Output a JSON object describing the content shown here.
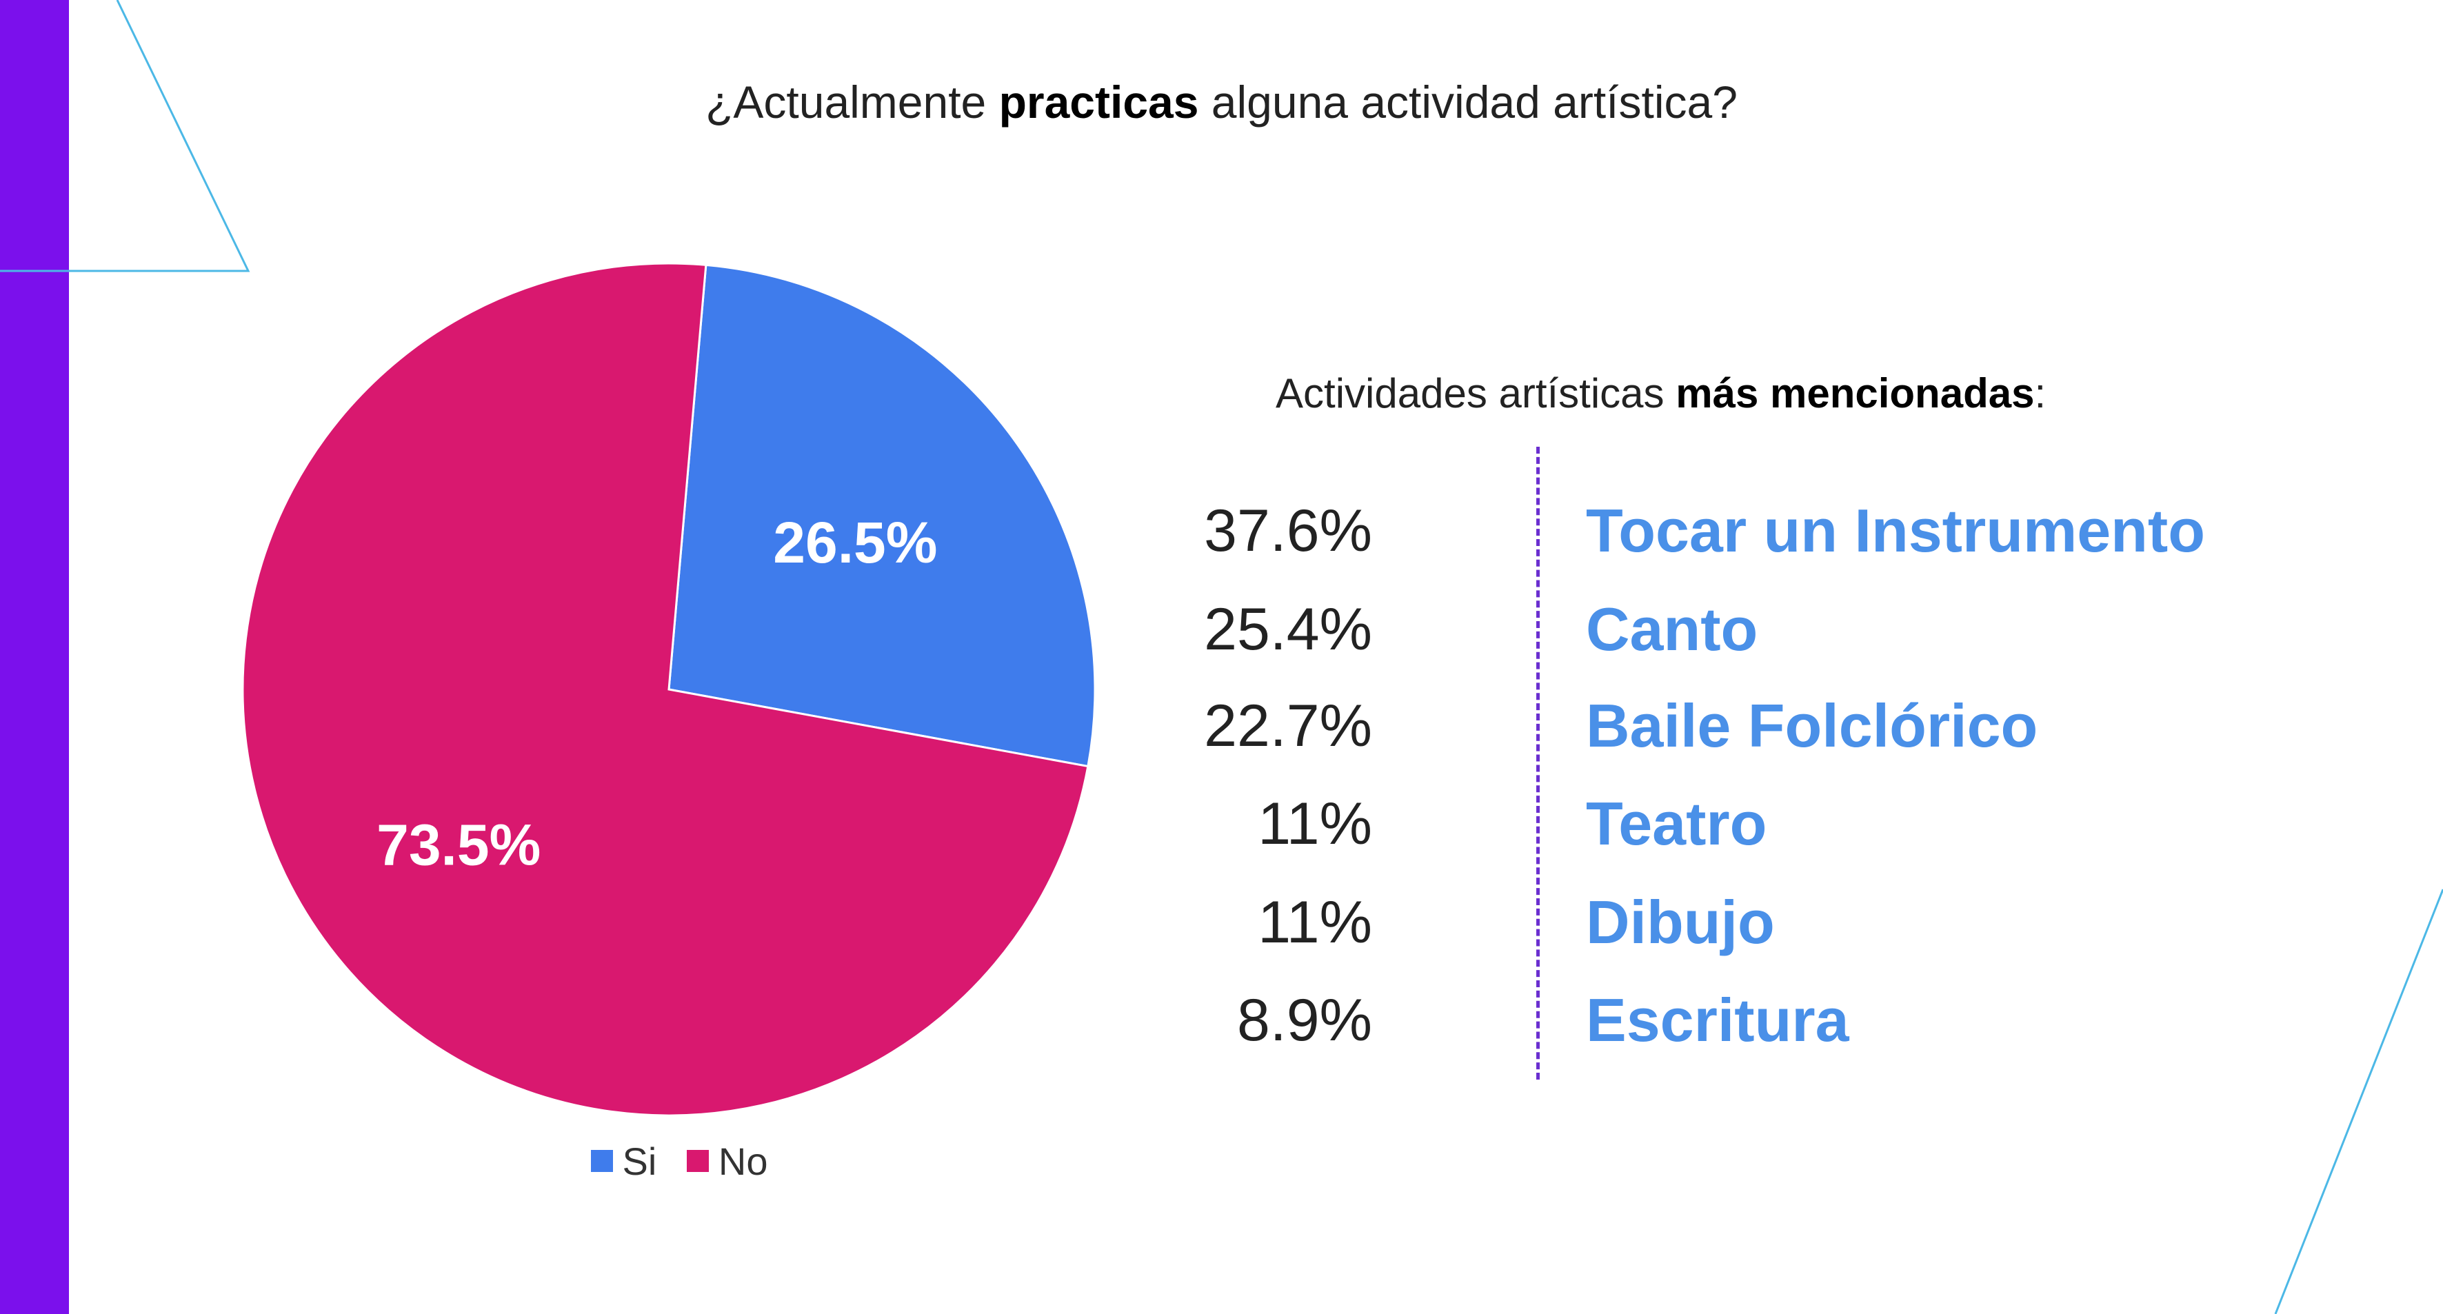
{
  "title": {
    "prefix": "¿Actualmente ",
    "bold": "practicas",
    "suffix": " alguna actividad artística?"
  },
  "colors": {
    "si": "#3f7cec",
    "no": "#d9186f",
    "left_bar": "#7b10ec",
    "deco_lines": "#4cb8e6",
    "activity_text": "#4a90e8",
    "divider": "#6a2fd0"
  },
  "chart_data": [
    {
      "type": "pie",
      "title": "¿Actualmente practicas alguna actividad artística?",
      "categories": [
        "Si",
        "No"
      ],
      "values": [
        26.5,
        73.5
      ],
      "labels": [
        "26.5%",
        "73.5%"
      ],
      "legend": [
        "Si",
        "No"
      ],
      "legend_position": "bottom"
    },
    {
      "type": "table",
      "title": "Actividades artísticas más mencionadas:",
      "categories": [
        "Tocar un Instrumento",
        "Canto",
        "Baile Folclórico",
        "Teatro",
        "Dibujo",
        "Escritura"
      ],
      "values": [
        37.6,
        25.4,
        22.7,
        11,
        11,
        8.9
      ]
    }
  ],
  "legend": {
    "si_label": "Si",
    "no_label": "No"
  },
  "activities": {
    "title_prefix": "Actividades artísticas ",
    "title_bold": "más mencionadas",
    "title_suffix": ":",
    "items": [
      {
        "pct": "37.6%",
        "name": "Tocar un Instrumento"
      },
      {
        "pct": "25.4%",
        "name": "Canto"
      },
      {
        "pct": "22.7%",
        "name": "Baile Folclórico"
      },
      {
        "pct": "11%",
        "name": "Teatro"
      },
      {
        "pct": "11%",
        "name": "Dibujo"
      },
      {
        "pct": "8.9%",
        "name": "Escritura"
      }
    ]
  }
}
